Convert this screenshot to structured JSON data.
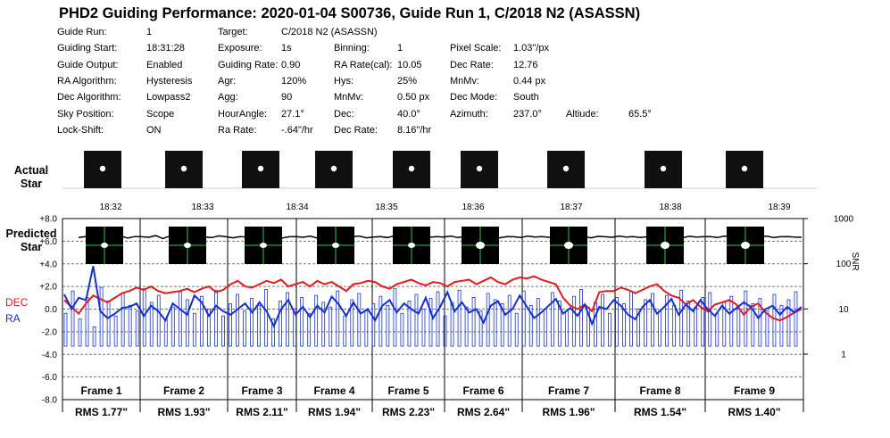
{
  "title": "PHD2 Guiding Performance: 2020-01-04 S00736, Guide Run 1, C/2018 N2 (ASASSN)",
  "info_rows": [
    [
      [
        "Guide Run:",
        "1"
      ],
      [
        "Target:",
        "C/2018 N2 (ASASSN)"
      ]
    ],
    [
      [
        "Guiding Start:",
        "18:31:28"
      ],
      [
        "Exposure:",
        "1s"
      ],
      [
        "Binning:",
        "1"
      ],
      [
        "Pixel Scale:",
        "1.03\"/px"
      ]
    ],
    [
      [
        "Guide Output:",
        "Enabled"
      ],
      [
        "Guiding Rate:",
        "0.90"
      ],
      [
        "RA Rate(cal):",
        "10.05"
      ],
      [
        "Dec Rate:",
        "12.76"
      ]
    ],
    [
      [
        "RA Algorithm:",
        "Hysteresis"
      ],
      [
        "Agr:",
        "120%"
      ],
      [
        "Hys:",
        "25%"
      ],
      [
        "MnMv:",
        "0.44 px"
      ]
    ],
    [
      [
        "Dec Algorithm:",
        "Lowpass2"
      ],
      [
        "Agg:",
        "90"
      ],
      [
        "MnMv:",
        "0.50 px"
      ],
      [
        "Dec Mode:",
        "South"
      ]
    ],
    [
      [
        "Sky Position:",
        "Scope"
      ],
      [
        "HourAngle:",
        "27.1°"
      ],
      [
        "Dec:",
        "40.0°"
      ],
      [
        "Azimuth:",
        "237.0°"
      ],
      [
        "Altiude:",
        "65.5°"
      ]
    ],
    [
      [
        "Lock-Shift:",
        "ON"
      ],
      [
        "Ra Rate:",
        "-.64\"/hr"
      ],
      [
        "Dec Rate:",
        "8.16\"/hr"
      ]
    ]
  ],
  "labels": {
    "actual_star": [
      "Actual",
      "Star"
    ],
    "predicted_star": [
      "Predicted",
      "Star"
    ],
    "dec": "DEC",
    "ra": "RA",
    "snr": "SNR"
  },
  "colors": {
    "dec": "#e41a1c",
    "ra": "#1530d0",
    "snr_line": "#000000",
    "grid": "#888888"
  },
  "chart_data": {
    "type": "line",
    "title": "",
    "x_unit": "time",
    "time_ticks": [
      "18:32",
      "18:33",
      "18:34",
      "18:35",
      "18:36",
      "18:37",
      "18:38",
      "18:39"
    ],
    "y_left": {
      "ticks": [
        "+8.0",
        "+6.0",
        "+4.0",
        "+2.0",
        "0.0",
        "-2.0",
        "-4.0",
        "-6.0",
        "-8.0"
      ],
      "range": [
        -8,
        8
      ],
      "unit": "arcsec"
    },
    "y_right": {
      "label": "SNR",
      "scale": "log",
      "ticks": [
        "1000",
        "100",
        "10",
        "1"
      ],
      "range": [
        0.5,
        1000
      ]
    },
    "frames": [
      {
        "label": "Frame 1",
        "rms": "RMS 1.77\""
      },
      {
        "label": "Frame 2",
        "rms": "RMS 1.93\""
      },
      {
        "label": "Frame 3",
        "rms": "RMS 2.11\""
      },
      {
        "label": "Frame 4",
        "rms": "RMS 1.94\""
      },
      {
        "label": "Frame 5",
        "rms": "RMS 2.23\""
      },
      {
        "label": "Frame 6",
        "rms": "RMS 2.64\""
      },
      {
        "label": "Frame 7",
        "rms": "RMS 1.96\""
      },
      {
        "label": "Frame 8",
        "rms": "RMS 1.54\""
      },
      {
        "label": "Frame 9",
        "rms": "RMS 1.40\""
      }
    ],
    "series": [
      {
        "name": "DEC",
        "values": [
          0.8,
          0.2,
          -0.4,
          0.5,
          1.2,
          0.9,
          0.6,
          1.0,
          1.4,
          1.6,
          1.9,
          1.7,
          2.0,
          1.6,
          1.4,
          1.5,
          1.6,
          1.8,
          1.5,
          1.8,
          2.0,
          1.5,
          1.7,
          2.2,
          2.5,
          2.0,
          1.9,
          2.2,
          2.5,
          2.3,
          2.6,
          2.0,
          2.2,
          2.4,
          2.0,
          2.5,
          2.2,
          2.4,
          2.0,
          1.6,
          2.2,
          2.3,
          2.5,
          2.4,
          2.0,
          1.8,
          2.2,
          2.4,
          2.6,
          2.3,
          2.1,
          2.4,
          2.3,
          2.0,
          2.4,
          2.5,
          2.6,
          2.2,
          2.5,
          2.8,
          2.4,
          2.2,
          2.6,
          2.8,
          2.7,
          2.9,
          2.6,
          2.4,
          2.2,
          1.0,
          0.3,
          0.0,
          0.4,
          -0.2,
          1.5,
          1.6,
          1.6,
          1.9,
          1.7,
          1.4,
          1.7,
          2.0,
          2.2,
          1.6,
          1.2,
          1.0,
          0.4,
          0.8,
          0.2,
          -0.2,
          0.4,
          0.6,
          0.8,
          0.4,
          -0.5,
          0.2,
          0.5,
          -0.3,
          -0.8,
          -1.0,
          -0.7,
          -0.3,
          0.0
        ]
      },
      {
        "name": "RA",
        "values": [
          1.3,
          0.0,
          1.0,
          0.8,
          3.8,
          -0.2,
          -0.8,
          -0.4,
          0.1,
          0.2,
          0.5,
          -0.6,
          0.3,
          -0.2,
          -1.0,
          0.5,
          0.0,
          -0.5,
          1.2,
          0.6,
          -0.6,
          0.3,
          -0.2,
          -0.5,
          0.0,
          0.5,
          -0.3,
          0.6,
          -0.2,
          -1.5,
          0.0,
          0.8,
          -0.5,
          0.2,
          -0.7,
          0.3,
          -0.3,
          1.1,
          0.4,
          -0.6,
          0.6,
          -0.4,
          0.0,
          -1.0,
          0.3,
          0.8,
          -0.3,
          0.5,
          0.0,
          -0.4,
          1.0,
          -0.8,
          0.2,
          1.5,
          -0.2,
          0.6,
          -0.3,
          0.0,
          -1.2,
          0.3,
          0.7,
          -0.5,
          0.0,
          1.2,
          0.2,
          -0.8,
          -0.3,
          0.3,
          0.9,
          -0.4,
          0.1,
          -0.6,
          0.4,
          -1.3,
          0.2,
          0.0,
          0.8,
          0.3,
          -0.5,
          -0.9,
          0.2,
          0.8,
          -0.4,
          0.2,
          0.9,
          -0.5,
          0.4,
          -0.2,
          0.8,
          0.0,
          -0.6,
          0.3,
          -0.4,
          0.1,
          0.6,
          0.2,
          -0.8,
          0.0,
          0.3,
          -0.5,
          0.2,
          -0.3,
          0.2
        ]
      },
      {
        "name": "SNR",
        "values": [
          380,
          400,
          360,
          420,
          390,
          380,
          410,
          370,
          400,
          395,
          385,
          420,
          360,
          410,
          390,
          400,
          370,
          405,
          390,
          380,
          415,
          395,
          375,
          400,
          390,
          420,
          380,
          400,
          410,
          370,
          395,
          400,
          385,
          410,
          370,
          390,
          420,
          380,
          400,
          395,
          410,
          375,
          390,
          400,
          380,
          415,
          390,
          370,
          405,
          395,
          385,
          400,
          390,
          410,
          380,
          395,
          400,
          385,
          410,
          390,
          375,
          400,
          395,
          380,
          410,
          390,
          400,
          385,
          395,
          410,
          380,
          390,
          400,
          375,
          405,
          395,
          385,
          410,
          390,
          400,
          380,
          395,
          410,
          385,
          400,
          390,
          375,
          405,
          390,
          395,
          400,
          380,
          410,
          390,
          395,
          385,
          400,
          390,
          410,
          380,
          395,
          400,
          390,
          385
        ]
      }
    ],
    "snr_bars": [
      8,
      25,
      6,
      18,
      4,
      30,
      15,
      7,
      22,
      12,
      9,
      28,
      14,
      20,
      6,
      11,
      24,
      16,
      8,
      19,
      10,
      26,
      7,
      13,
      21,
      9,
      17,
      12,
      27,
      6,
      15,
      23,
      10,
      18,
      8,
      20,
      14,
      11,
      25,
      7,
      16,
      22,
      9,
      13,
      19,
      12,
      28,
      8,
      15,
      21,
      10,
      17,
      24,
      7,
      14,
      26,
      11,
      18,
      9,
      22,
      16,
      13,
      20,
      8,
      25,
      12,
      17,
      10,
      23,
      15,
      9,
      19,
      27,
      11,
      14,
      21,
      8,
      18,
      13,
      24,
      10,
      16,
      22,
      9,
      20,
      12,
      26,
      15,
      11,
      18,
      23,
      8,
      14,
      19,
      10,
      25,
      13,
      17,
      9,
      21,
      12,
      16,
      24
    ]
  }
}
